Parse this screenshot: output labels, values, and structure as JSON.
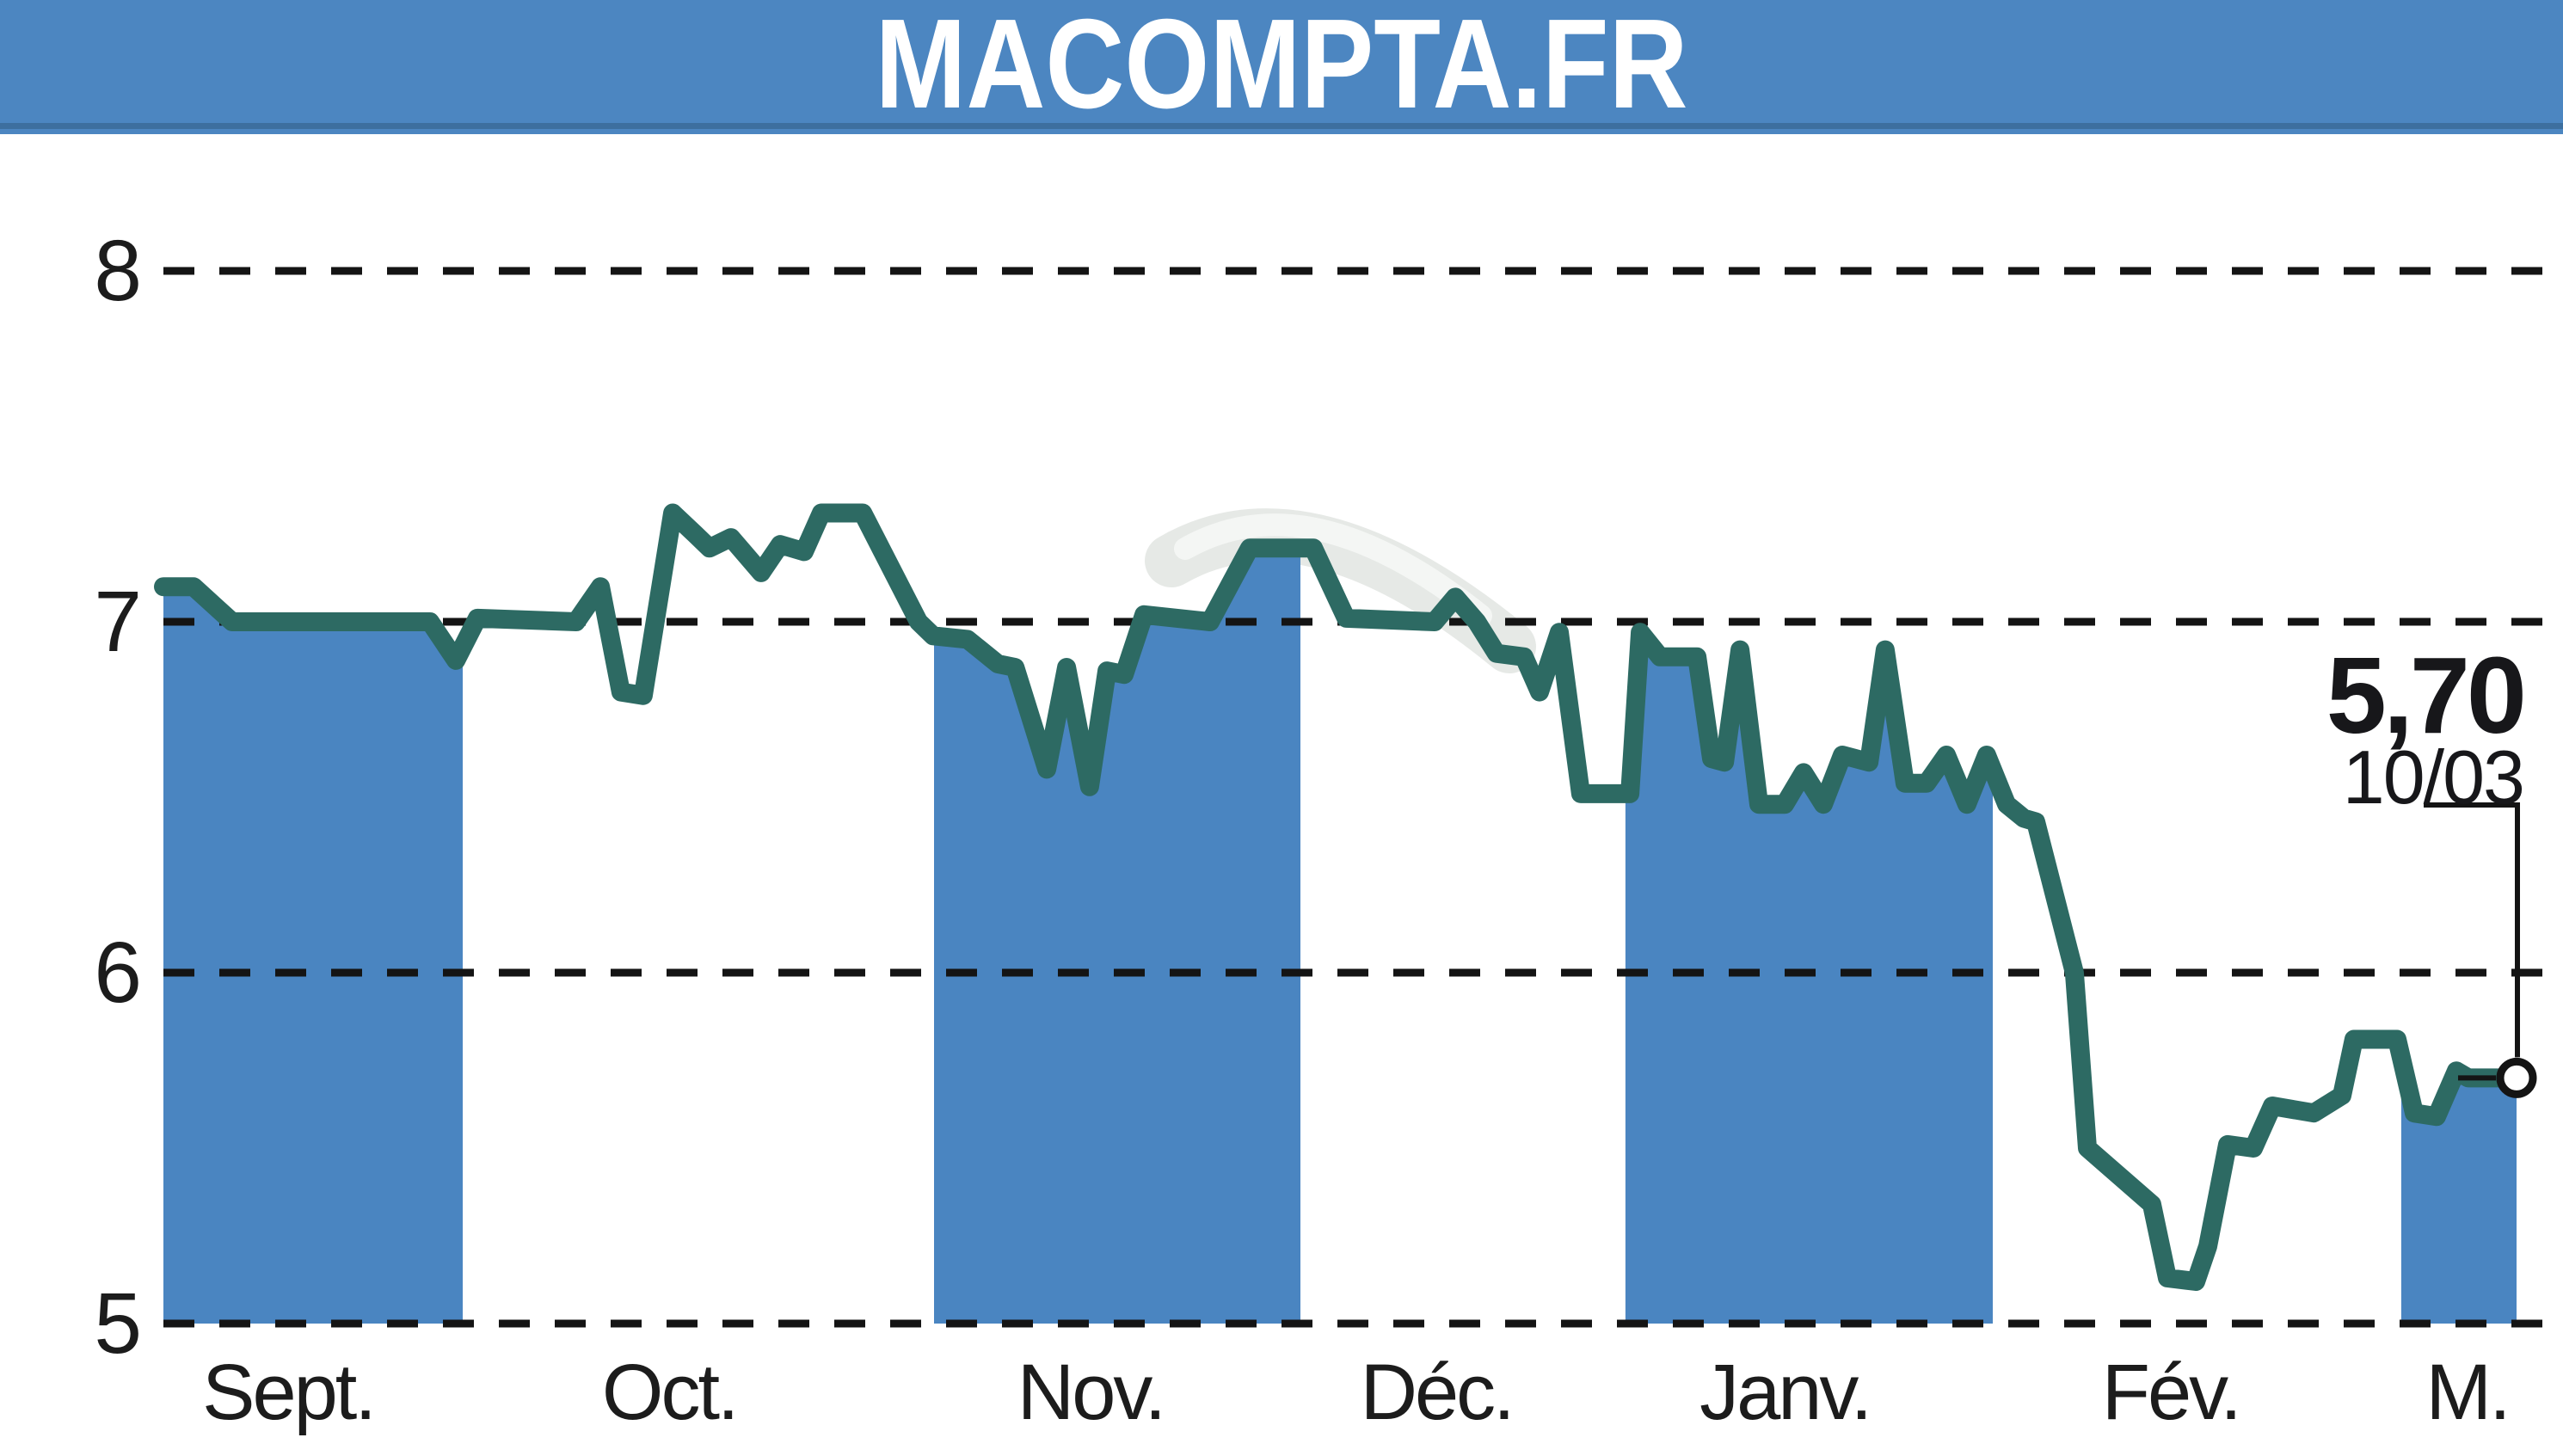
{
  "header": {
    "title": "MACOMPTA.FR"
  },
  "annotation": {
    "last_price": "5,70",
    "last_date": "10/03"
  },
  "colors": {
    "header_blue": "#4c86c1",
    "area_blue": "#4a85c1",
    "line_teal": "#2d6a63",
    "grid_black": "#141414",
    "text_black": "#1c1c1c",
    "watermark_gray": "#e6e9e6",
    "watermark_light": "#f4f6f4",
    "marker_fill": "#ffffff"
  },
  "chart_data": {
    "type": "area",
    "title": "MACOMPTA.FR",
    "xlabel": "",
    "ylabel": "",
    "ylim": [
      5,
      8
    ],
    "yticks": [
      8,
      7,
      6,
      5
    ],
    "grid": "dashed-horizontal",
    "legend_position": "none",
    "months": [
      {
        "label": "Sept.",
        "t0": 0.0,
        "t1": 0.1272,
        "shaded": true,
        "label_t": 0.053
      },
      {
        "label": "Oct.",
        "t0": 0.1272,
        "t1": 0.3275,
        "shaded": false,
        "label_t": 0.215
      },
      {
        "label": "Nov.",
        "t0": 0.3275,
        "t1": 0.4832,
        "shaded": true,
        "label_t": 0.394
      },
      {
        "label": "Déc.",
        "t0": 0.4832,
        "t1": 0.6213,
        "shaded": false,
        "label_t": 0.541
      },
      {
        "label": "Janv.",
        "t0": 0.6213,
        "t1": 0.7774,
        "shaded": true,
        "label_t": 0.689
      },
      {
        "label": "Fév.",
        "t0": 0.7774,
        "t1": 0.951,
        "shaded": false,
        "label_t": 0.853
      },
      {
        "label": "M.",
        "t0": 0.951,
        "t1": 1.0,
        "shaded": true,
        "label_t": 0.979
      }
    ],
    "series": [
      {
        "name": "share-price-eur",
        "points": [
          [
            0.0,
            7.1
          ],
          [
            0.0128,
            7.1
          ],
          [
            0.0292,
            7.0
          ],
          [
            0.1133,
            7.0
          ],
          [
            0.1243,
            6.89
          ],
          [
            0.1334,
            7.01
          ],
          [
            0.1754,
            7.0
          ],
          [
            0.1857,
            7.1
          ],
          [
            0.1944,
            6.8
          ],
          [
            0.2039,
            6.79
          ],
          [
            0.2164,
            7.31
          ],
          [
            0.2259,
            7.25
          ],
          [
            0.2321,
            7.21
          ],
          [
            0.2412,
            7.24
          ],
          [
            0.254,
            7.14
          ],
          [
            0.2621,
            7.22
          ],
          [
            0.2723,
            7.2
          ],
          [
            0.2796,
            7.31
          ],
          [
            0.2972,
            7.31
          ],
          [
            0.3209,
            7.0
          ],
          [
            0.3271,
            6.96
          ],
          [
            0.3417,
            6.95
          ],
          [
            0.3546,
            6.88
          ],
          [
            0.3619,
            6.87
          ],
          [
            0.3754,
            6.58
          ],
          [
            0.3838,
            6.87
          ],
          [
            0.3936,
            6.53
          ],
          [
            0.401,
            6.86
          ],
          [
            0.4083,
            6.85
          ],
          [
            0.4167,
            7.02
          ],
          [
            0.4448,
            7.0
          ],
          [
            0.4616,
            7.21
          ],
          [
            0.4887,
            7.21
          ],
          [
            0.5026,
            7.01
          ],
          [
            0.5402,
            7.0
          ],
          [
            0.549,
            7.07
          ],
          [
            0.5581,
            7.0
          ],
          [
            0.5665,
            6.91
          ],
          [
            0.5782,
            6.9
          ],
          [
            0.5848,
            6.8
          ],
          [
            0.5932,
            6.97
          ],
          [
            0.6023,
            6.51
          ],
          [
            0.6232,
            6.51
          ],
          [
            0.6276,
            6.97
          ],
          [
            0.636,
            6.9
          ],
          [
            0.6517,
            6.9
          ],
          [
            0.6579,
            6.61
          ],
          [
            0.6634,
            6.6
          ],
          [
            0.67,
            6.92
          ],
          [
            0.678,
            6.48
          ],
          [
            0.689,
            6.48
          ],
          [
            0.697,
            6.57
          ],
          [
            0.7054,
            6.48
          ],
          [
            0.7135,
            6.62
          ],
          [
            0.7248,
            6.6
          ],
          [
            0.7317,
            6.92
          ],
          [
            0.7401,
            6.54
          ],
          [
            0.7493,
            6.54
          ],
          [
            0.7577,
            6.62
          ],
          [
            0.7664,
            6.48
          ],
          [
            0.7748,
            6.62
          ],
          [
            0.7833,
            6.48
          ],
          [
            0.7906,
            6.44
          ],
          [
            0.7957,
            6.43
          ],
          [
            0.8121,
            6.0
          ],
          [
            0.8176,
            5.5
          ],
          [
            0.845,
            5.34
          ],
          [
            0.8516,
            5.13
          ],
          [
            0.8637,
            5.12
          ],
          [
            0.8688,
            5.22
          ],
          [
            0.8772,
            5.51
          ],
          [
            0.8882,
            5.5
          ],
          [
            0.8962,
            5.62
          ],
          [
            0.9138,
            5.6
          ],
          [
            0.9258,
            5.65
          ],
          [
            0.9309,
            5.81
          ],
          [
            0.9492,
            5.81
          ],
          [
            0.9565,
            5.6
          ],
          [
            0.966,
            5.59
          ],
          [
            0.9744,
            5.72
          ],
          [
            0.9795,
            5.7
          ],
          [
            1.0,
            5.7
          ]
        ]
      }
    ],
    "last_point": {
      "t": 1.0,
      "value": 5.7,
      "label_value": "5,70",
      "label_date": "10/03"
    }
  }
}
